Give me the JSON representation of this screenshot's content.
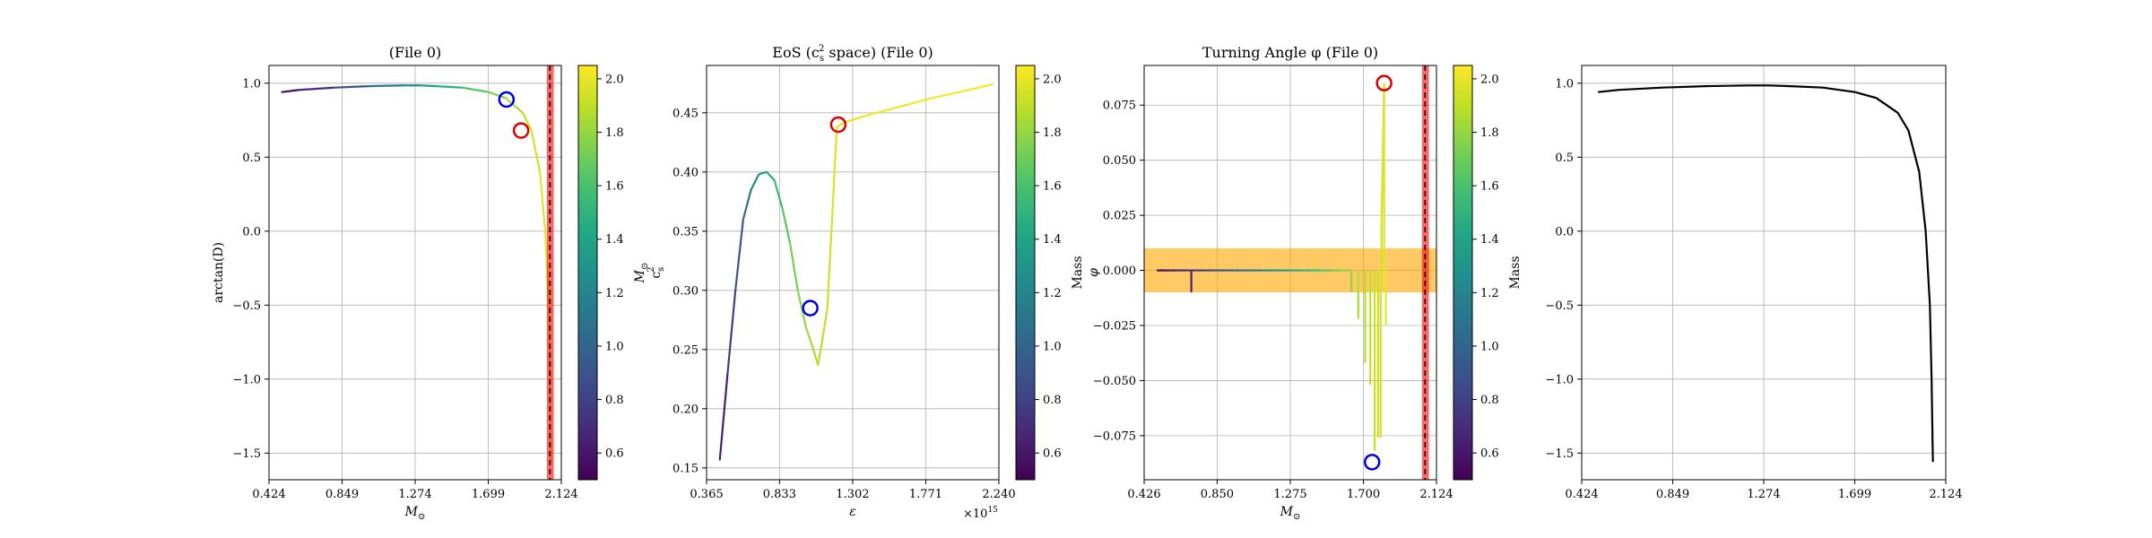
{
  "chart_data": [
    {
      "type": "line",
      "title": "(File 0)",
      "xlabel": "M_⊙",
      "ylabel": "arctan(D)",
      "xlim": [
        0.424,
        2.124
      ],
      "ylim": [
        -1.68,
        1.12
      ],
      "xticks": [
        "0.424",
        "0.849",
        "1.274",
        "1.699",
        "2.124"
      ],
      "yticks": [
        "-1.5",
        "-1.0",
        "-0.5",
        "0.0",
        "0.5",
        "1.0"
      ],
      "colormap": "viridis",
      "color_range": [
        0.5,
        2.05
      ],
      "colorbar_label": "M_⊙",
      "colorbar_ticks": [
        "0.6",
        "0.8",
        "1.0",
        "1.2",
        "1.4",
        "1.6",
        "1.8",
        "2.0"
      ],
      "x": [
        0.5,
        0.6,
        0.8,
        1.0,
        1.2,
        1.3,
        1.4,
        1.55,
        1.7,
        1.8,
        1.9,
        1.95,
        2.0,
        2.03,
        2.05,
        2.058,
        2.062,
        2.064
      ],
      "y": [
        0.94,
        0.955,
        0.97,
        0.98,
        0.985,
        0.985,
        0.98,
        0.97,
        0.94,
        0.9,
        0.8,
        0.68,
        0.4,
        0.0,
        -0.5,
        -1.0,
        -1.4,
        -1.56
      ],
      "c": [
        0.5,
        0.6,
        0.8,
        1.0,
        1.2,
        1.3,
        1.4,
        1.55,
        1.7,
        1.8,
        1.9,
        1.93,
        1.97,
        2.0,
        2.02,
        2.03,
        2.04,
        2.05
      ],
      "markers": [
        {
          "x": 1.805,
          "y": 0.89,
          "color": "#0000dd"
        },
        {
          "x": 1.89,
          "y": 0.68,
          "color": "#dd0000"
        }
      ],
      "vband": [
        2.04,
        2.08
      ],
      "vline": 2.058
    },
    {
      "type": "line",
      "title": "EoS (c²_s space) (File 0)",
      "xlabel": "ε",
      "ylabel": "c²_s",
      "x_offset_label": "×10^15",
      "xlim": [
        0.365,
        2.24
      ],
      "ylim": [
        0.14,
        0.49
      ],
      "xticks": [
        "0.365",
        "0.833",
        "1.302",
        "1.771",
        "2.240"
      ],
      "yticks": [
        "0.15",
        "0.20",
        "0.25",
        "0.30",
        "0.35",
        "0.40",
        "0.45"
      ],
      "colormap": "viridis",
      "color_range": [
        0.5,
        2.05
      ],
      "colorbar_label": "Mass",
      "colorbar_ticks": [
        "0.6",
        "0.8",
        "1.0",
        "1.2",
        "1.4",
        "1.6",
        "1.8",
        "2.0"
      ],
      "x": [
        0.45,
        0.5,
        0.55,
        0.6,
        0.65,
        0.7,
        0.75,
        0.8,
        0.85,
        0.9,
        0.95,
        1.0,
        1.05,
        1.08,
        1.11,
        1.14,
        1.17,
        1.2,
        1.25,
        1.4,
        1.6,
        1.8,
        2.0,
        2.2
      ],
      "y": [
        0.157,
        0.23,
        0.3,
        0.36,
        0.385,
        0.398,
        0.4,
        0.393,
        0.37,
        0.34,
        0.3,
        0.27,
        0.25,
        0.237,
        0.26,
        0.285,
        0.36,
        0.438,
        0.442,
        0.448,
        0.455,
        0.462,
        0.468,
        0.474
      ],
      "c": [
        0.55,
        0.7,
        0.85,
        1.0,
        1.15,
        1.3,
        1.4,
        1.5,
        1.6,
        1.7,
        1.75,
        1.8,
        1.85,
        1.88,
        1.9,
        1.92,
        1.95,
        1.98,
        2.0,
        2.01,
        2.02,
        2.03,
        2.04,
        2.05
      ],
      "markers": [
        {
          "x": 1.03,
          "y": 0.285,
          "color": "#0000dd"
        },
        {
          "x": 1.21,
          "y": 0.44,
          "color": "#dd0000"
        }
      ]
    },
    {
      "type": "line",
      "title": "Turning Angle φ (File 0)",
      "xlabel": "M_⊙",
      "ylabel": "φ",
      "xlim": [
        0.426,
        2.124
      ],
      "ylim": [
        -0.095,
        0.093
      ],
      "xticks": [
        "0.426",
        "0.850",
        "1.275",
        "1.700",
        "2.124"
      ],
      "yticks": [
        "-0.075",
        "-0.050",
        "-0.025",
        "0.000",
        "0.025",
        "0.050",
        "0.075"
      ],
      "colormap": "viridis",
      "color_range": [
        0.5,
        2.05
      ],
      "colorbar_label": "Mass",
      "colorbar_ticks": [
        "0.6",
        "0.8",
        "1.0",
        "1.2",
        "1.4",
        "1.6",
        "1.8",
        "2.0"
      ],
      "baseline": {
        "x": [
          0.5,
          1.62
        ],
        "y": 0.0
      },
      "hband": [
        -0.01,
        0.01
      ],
      "spikes": [
        {
          "x": 0.7,
          "y": -0.01,
          "c": 0.65
        },
        {
          "x": 1.63,
          "y": -0.01,
          "c": 1.8
        },
        {
          "x": 1.67,
          "y": -0.022,
          "c": 1.85
        },
        {
          "x": 1.71,
          "y": -0.042,
          "c": 1.88
        },
        {
          "x": 1.74,
          "y": -0.052,
          "c": 1.9
        },
        {
          "x": 1.765,
          "y": -0.082,
          "c": 1.92
        },
        {
          "x": 1.785,
          "y": -0.076,
          "c": 1.93
        },
        {
          "x": 1.8,
          "y": -0.076,
          "c": 1.95
        },
        {
          "x": 1.805,
          "y": 0.022,
          "c": 1.95
        },
        {
          "x": 1.82,
          "y": 0.085,
          "c": 1.98
        },
        {
          "x": 1.83,
          "y": -0.025,
          "c": 2.0
        }
      ],
      "markers": [
        {
          "x": 1.75,
          "y": -0.087,
          "color": "#0000dd"
        },
        {
          "x": 1.82,
          "y": 0.085,
          "color": "#dd0000"
        }
      ],
      "vband": [
        2.04,
        2.08
      ],
      "vline": 2.058
    },
    {
      "type": "line",
      "title": "",
      "xlabel": "",
      "ylabel": "",
      "xlim": [
        0.424,
        2.124
      ],
      "ylim": [
        -1.68,
        1.12
      ],
      "xticks": [
        "0.424",
        "0.849",
        "1.274",
        "1.699",
        "2.124"
      ],
      "yticks": [
        "-1.5",
        "-1.0",
        "-0.5",
        "0.0",
        "0.5",
        "1.0"
      ],
      "color": "#000000",
      "x": [
        0.5,
        0.6,
        0.8,
        1.0,
        1.2,
        1.3,
        1.4,
        1.55,
        1.7,
        1.8,
        1.9,
        1.95,
        2.0,
        2.03,
        2.05,
        2.058,
        2.062,
        2.064
      ],
      "y": [
        0.94,
        0.955,
        0.97,
        0.98,
        0.985,
        0.985,
        0.98,
        0.97,
        0.94,
        0.9,
        0.8,
        0.68,
        0.4,
        0.0,
        -0.5,
        -1.0,
        -1.4,
        -1.56
      ]
    }
  ]
}
